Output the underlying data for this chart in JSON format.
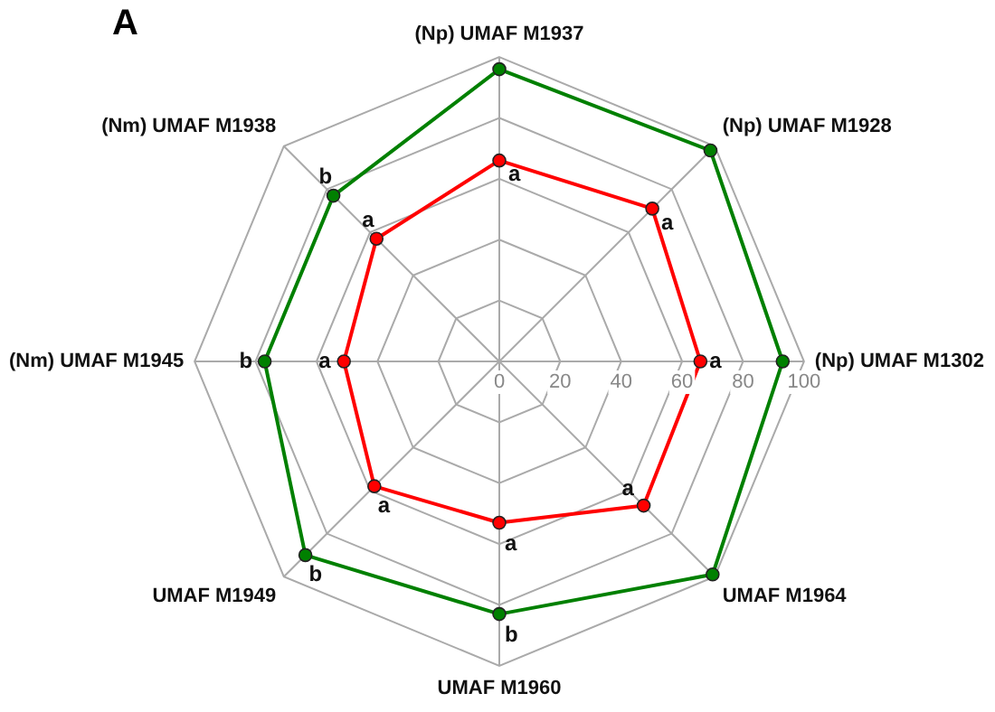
{
  "chart_data": {
    "type": "radar",
    "title": "A",
    "categories": [
      "(Np) UMAF M1937",
      "(Np) UMAF M1928",
      "(Np) UMAF M1302",
      "UMAF M1964",
      "UMAF M1960",
      "UMAF M1949",
      "(Nm) UMAF M1945",
      "(Nm) UMAF M1938"
    ],
    "series": [
      {
        "color": "#008000",
        "values": [
          96,
          98,
          93,
          99,
          83,
          90,
          77,
          77
        ],
        "value_labels": [
          null,
          null,
          null,
          null,
          "b",
          "b",
          "b",
          "b"
        ]
      },
      {
        "color": "#ff0000",
        "values": [
          66,
          71,
          66,
          67,
          53,
          58,
          51,
          57
        ],
        "value_labels": [
          "a",
          "a",
          "a",
          "a",
          "a",
          "a",
          "a",
          "a"
        ]
      }
    ],
    "ylim": [
      0,
      100
    ],
    "yticks": [
      0,
      20,
      40,
      60,
      80,
      100
    ],
    "grid": true,
    "marker": "circle",
    "legend": false
  }
}
